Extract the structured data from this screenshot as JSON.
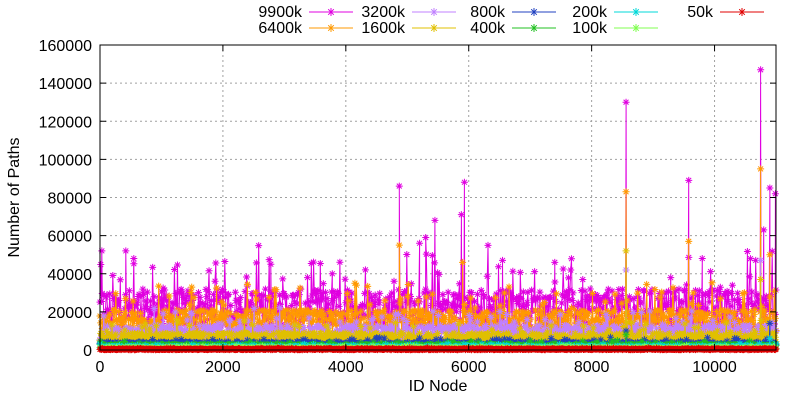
{
  "chart_data": {
    "type": "scatter",
    "title": "",
    "xlabel": "ID Node",
    "ylabel": "Number of Paths",
    "xlim": [
      0,
      11000
    ],
    "ylim": [
      0,
      160000
    ],
    "xticks": [
      0,
      2000,
      4000,
      6000,
      8000,
      10000
    ],
    "yticks": [
      0,
      20000,
      40000,
      60000,
      80000,
      100000,
      120000,
      140000,
      160000
    ],
    "grid": true,
    "legend_position": "top",
    "series": [
      {
        "name": "9900k",
        "color": "#e000e0",
        "baseline": 22000,
        "spread": 10000,
        "peaks": [
          [
            30,
            52000
          ],
          [
            420,
            52000
          ],
          [
            550,
            48000
          ],
          [
            2780,
            45000
          ],
          [
            3780,
            40000
          ],
          [
            4870,
            86000
          ],
          [
            5200,
            56000
          ],
          [
            5300,
            59000
          ],
          [
            5450,
            68000
          ],
          [
            5880,
            71000
          ],
          [
            5930,
            88000
          ],
          [
            6550,
            47000
          ],
          [
            7400,
            46000
          ],
          [
            8560,
            130000
          ],
          [
            9580,
            89000
          ],
          [
            9800,
            48000
          ],
          [
            10750,
            147000
          ],
          [
            10800,
            63000
          ],
          [
            10900,
            85000
          ],
          [
            10990,
            82000
          ]
        ]
      },
      {
        "name": "6400k",
        "color": "#ff9900",
        "baseline": 14000,
        "spread": 7000,
        "peaks": [
          [
            4870,
            55000
          ],
          [
            5900,
            46000
          ],
          [
            8560,
            83000
          ],
          [
            9580,
            57000
          ],
          [
            10750,
            95000
          ],
          [
            10900,
            50000
          ]
        ]
      },
      {
        "name": "3200k",
        "color": "#c080ff",
        "baseline": 9000,
        "spread": 4000,
        "peaks": [
          [
            8560,
            42000
          ],
          [
            10750,
            47000
          ]
        ]
      },
      {
        "name": "1600k",
        "color": "#e0c000",
        "baseline": 6000,
        "spread": 3000,
        "peaks": [
          [
            8560,
            52000
          ],
          [
            10750,
            37000
          ]
        ]
      },
      {
        "name": "800k",
        "color": "#2040c0",
        "baseline": 3000,
        "spread": 1200,
        "peaks": [
          [
            8560,
            10000
          ],
          [
            10900,
            14000
          ]
        ]
      },
      {
        "name": "400k",
        "color": "#20c020",
        "baseline": 2200,
        "spread": 900,
        "peaks": [
          [
            8560,
            8000
          ]
        ]
      },
      {
        "name": "200k",
        "color": "#00d8d8",
        "baseline": 1400,
        "spread": 600,
        "peaks": [
          [
            10900,
            6000
          ]
        ]
      },
      {
        "name": "100k",
        "color": "#80ff50",
        "baseline": 900,
        "spread": 400,
        "peaks": []
      },
      {
        "name": "50k",
        "color": "#e00000",
        "baseline": 400,
        "spread": 250,
        "peaks": []
      }
    ]
  }
}
